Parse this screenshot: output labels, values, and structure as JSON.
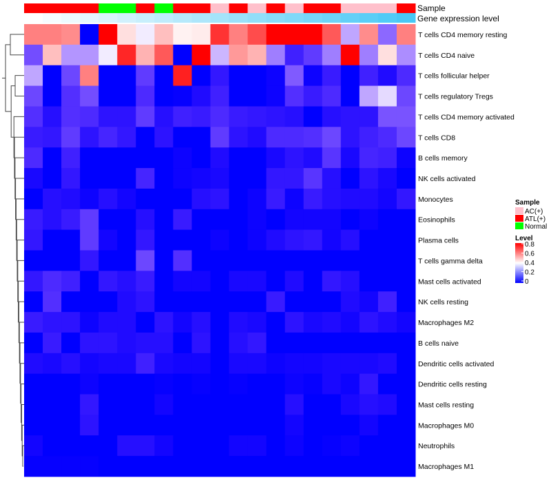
{
  "chart_data": {
    "type": "heatmap",
    "annotation_labels": {
      "sample": "Sample",
      "gene": "Gene expression level"
    },
    "columns_sample": [
      "ATL(+)",
      "ATL(+)",
      "ATL(+)",
      "ATL(+)",
      "Normal",
      "Normal",
      "ATL(+)",
      "Normal",
      "ATL(+)",
      "ATL(+)",
      "AC(+)",
      "ATL(+)",
      "AC(+)",
      "ATL(+)",
      "AC(+)",
      "ATL(+)",
      "ATL(+)",
      "AC(+)",
      "AC(+)",
      "AC(+)",
      "ATL(+)"
    ],
    "columns_gene_level": [
      0,
      0.05,
      0.1,
      0.15,
      0.2,
      0.25,
      0.3,
      0.35,
      0.4,
      0.45,
      0.5,
      0.55,
      0.6,
      0.65,
      0.7,
      0.75,
      0.8,
      0.85,
      0.9,
      0.95,
      1.0
    ],
    "rows": [
      "T cells CD4 memory resting",
      "T cells CD4 naive",
      "T cells follicular helper",
      "T cells regulatory  Tregs",
      "T cells CD4 memory activated",
      "T cells CD8",
      "B cells memory",
      "NK cells activated",
      "Monocytes",
      "Eosinophils",
      "Plasma cells",
      "T cells gamma delta",
      "Mast cells activated",
      "NK cells resting",
      "Macrophages M2",
      "B cells naive",
      "Dendritic cells activated",
      "Dendritic cells resting",
      "Mast cells resting",
      "Macrophages M0",
      "Neutrophils",
      "Macrophages M1"
    ],
    "values": [
      [
        0.6,
        0.6,
        0.58,
        0,
        0.8,
        0.45,
        0.38,
        0.5,
        0.42,
        0.43,
        0.72,
        0.6,
        0.68,
        0.8,
        0.8,
        0.8,
        0.66,
        0.3,
        0.58,
        0.22,
        0.6
      ],
      [
        0.18,
        0.5,
        0.28,
        0.28,
        0.38,
        0.74,
        0.52,
        0.66,
        0,
        0.8,
        0.32,
        0.56,
        0.52,
        0.25,
        0.1,
        0.15,
        0.25,
        0.8,
        0.25,
        0.45,
        0.27
      ],
      [
        0.3,
        0,
        0.17,
        0.6,
        0,
        0,
        0.15,
        0,
        0.75,
        0,
        0.08,
        0,
        0,
        0.02,
        0.2,
        0.02,
        0.09,
        0,
        0.1,
        0.05,
        0.12
      ],
      [
        0.17,
        0,
        0.13,
        0.18,
        0,
        0,
        0.12,
        0,
        0.01,
        0.05,
        0.1,
        0,
        0,
        0.02,
        0.13,
        0.09,
        0.12,
        0,
        0.3,
        0.36,
        0.17
      ],
      [
        0.13,
        0.06,
        0.13,
        0.12,
        0.07,
        0.07,
        0.15,
        0.06,
        0.1,
        0.09,
        0.12,
        0.09,
        0.08,
        0.07,
        0.06,
        0,
        0.06,
        0.07,
        0.07,
        0.19,
        0.19
      ],
      [
        0.09,
        0.08,
        0.15,
        0.07,
        0.11,
        0.08,
        0,
        0.07,
        0,
        0,
        0.15,
        0.07,
        0.05,
        0.12,
        0.12,
        0.13,
        0.17,
        0.07,
        0.1,
        0.12,
        0.17
      ],
      [
        0.12,
        0,
        0.1,
        0,
        0,
        0,
        0,
        0,
        0.02,
        0,
        0.05,
        0,
        0,
        0.04,
        0.07,
        0.05,
        0.14,
        0.04,
        0.11,
        0.1,
        0.02
      ],
      [
        0.04,
        0,
        0.08,
        0,
        0,
        0,
        0.11,
        0,
        0.02,
        0.03,
        0.04,
        0,
        0,
        0.08,
        0.08,
        0.14,
        0.06,
        0,
        0.07,
        0.04,
        0
      ],
      [
        0,
        0.06,
        0.05,
        0.02,
        0.06,
        0.03,
        0,
        0,
        0,
        0.06,
        0.07,
        0,
        0.02,
        0.09,
        0.02,
        0.09,
        0.06,
        0.05,
        0.05,
        0.03,
        0.08
      ],
      [
        0.09,
        0.06,
        0.09,
        0.15,
        0,
        0,
        0.06,
        0,
        0.09,
        0,
        0,
        0,
        0.02,
        0,
        0.03,
        0.03,
        0.03,
        0,
        0.02,
        0,
        0
      ],
      [
        0.08,
        0,
        0,
        0.15,
        0.03,
        0,
        0.08,
        0,
        0,
        0,
        0.02,
        0,
        0.02,
        0.05,
        0.07,
        0.08,
        0.03,
        0.06,
        0,
        0,
        0
      ],
      [
        0,
        0,
        0,
        0.08,
        0,
        0,
        0.17,
        0,
        0.13,
        0,
        0,
        0,
        0,
        0,
        0,
        0,
        0,
        0,
        0,
        0,
        0
      ],
      [
        0.08,
        0.12,
        0.1,
        0,
        0.08,
        0.06,
        0.09,
        0,
        0.03,
        0.03,
        0,
        0.04,
        0.04,
        0,
        0.05,
        0,
        0.08,
        0.06,
        0,
        0,
        0
      ],
      [
        0,
        0.13,
        0,
        0,
        0,
        0.05,
        0.07,
        0,
        0,
        0,
        0,
        0,
        0,
        0.09,
        0,
        0,
        0,
        0.05,
        0.03,
        0.1,
        0
      ],
      [
        0.09,
        0.07,
        0.07,
        0.02,
        0.05,
        0.05,
        0,
        0.07,
        0.03,
        0.06,
        0,
        0.05,
        0.04,
        0,
        0.07,
        0.04,
        0.05,
        0.03,
        0.07,
        0.05,
        0.03
      ],
      [
        0,
        0.09,
        0,
        0.07,
        0.07,
        0.05,
        0.06,
        0.06,
        0,
        0.07,
        0,
        0.06,
        0.08,
        0,
        0,
        0,
        0,
        0,
        0,
        0,
        0
      ],
      [
        0.05,
        0.04,
        0.06,
        0.03,
        0.04,
        0.04,
        0.1,
        0.04,
        0.03,
        0.03,
        0,
        0.04,
        0.04,
        0.02,
        0.03,
        0.03,
        0.04,
        0.04,
        0.04,
        0.05,
        0
      ],
      [
        0,
        0,
        0,
        0.02,
        0,
        0,
        0,
        0.01,
        0,
        0.01,
        0,
        0.01,
        0,
        0,
        0.02,
        0.01,
        0.04,
        0.02,
        0.08,
        0,
        0
      ],
      [
        0,
        0,
        0,
        0.08,
        0,
        0,
        0,
        0.03,
        0,
        0,
        0,
        0,
        0,
        0,
        0.06,
        0,
        0,
        0.04,
        0.06,
        0.05,
        0
      ],
      [
        0,
        0,
        0,
        0.07,
        0,
        0,
        0,
        0,
        0,
        0,
        0,
        0,
        0,
        0,
        0.03,
        0,
        0,
        0,
        0.03,
        0,
        0
      ],
      [
        0.03,
        0,
        0,
        0,
        0,
        0.06,
        0.06,
        0.03,
        0,
        0,
        0,
        0.03,
        0.03,
        0,
        0.02,
        0,
        0.01,
        0.02,
        0,
        0,
        0
      ],
      [
        0.01,
        0.01,
        0.01,
        0.01,
        0,
        0,
        0,
        0,
        0,
        0,
        0,
        0,
        0,
        0,
        0,
        0,
        0,
        0,
        0,
        0,
        0
      ]
    ],
    "color_range": [
      0,
      0.8
    ],
    "legend": {
      "sample_title": "Sample",
      "sample_entries": [
        {
          "label": "AC(+)",
          "color": "#ffc0cb"
        },
        {
          "label": "ATL(+)",
          "color": "#ff0000"
        },
        {
          "label": "Normal",
          "color": "#00ff00"
        }
      ],
      "level_title": "Level",
      "level_ticks": [
        "0.8",
        "0.6",
        "0.4",
        "0.2",
        "0"
      ],
      "placement": "right"
    },
    "colors": {
      "low": "#0000ff",
      "mid": "#ffffff",
      "high": "#ff0000",
      "gene_high": "#48c8f5"
    }
  }
}
